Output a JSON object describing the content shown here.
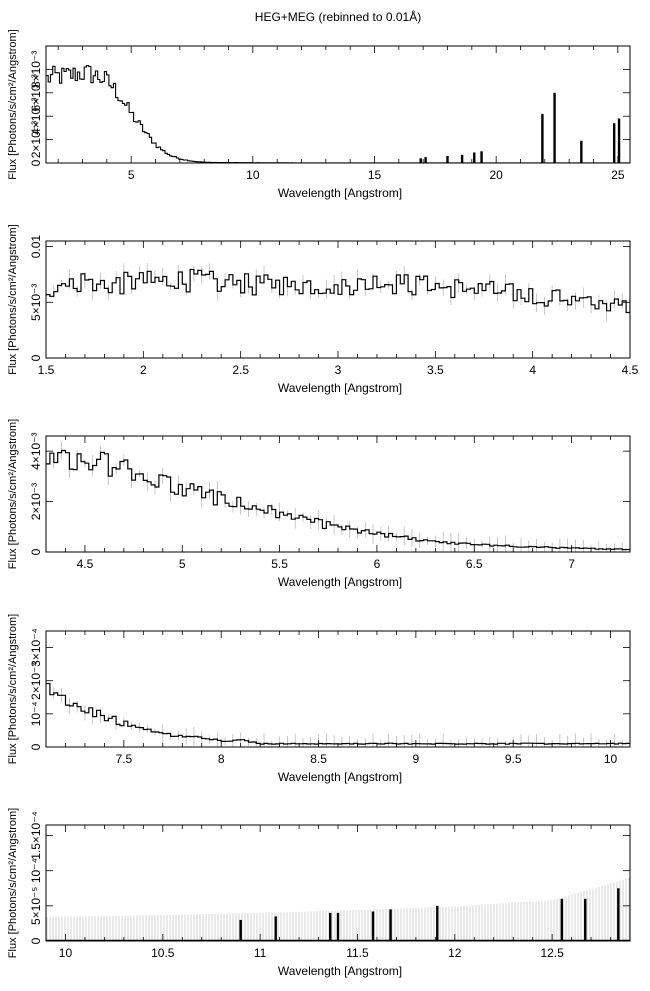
{
  "figure": {
    "title": "HEG+MEG (rebinned to 0.01Å)"
  },
  "chart_data": [
    {
      "type": "line",
      "xlabel": "Wavelength [Angstrom]",
      "ylabel": "Flux [Photons/s/cm²/Angstrom]",
      "xlim": [
        1.5,
        25.5
      ],
      "ylim": [
        0,
        0.01
      ],
      "xticks": [
        5,
        10,
        15,
        20,
        25
      ],
      "yticks": [
        {
          "v": 0,
          "label": "0"
        },
        {
          "v": 0.002,
          "label": "2×10⁻³"
        },
        {
          "v": 0.004,
          "label": "4×10⁻³"
        },
        {
          "v": 0.006,
          "label": "6×10⁻³"
        },
        {
          "v": 0.008,
          "label": "8×10⁻³"
        }
      ],
      "series": [
        {
          "x": [
            1.5,
            1.8,
            2.1,
            2.4,
            2.7,
            3.0,
            3.3,
            3.6,
            3.9,
            4.2,
            4.5,
            4.8,
            5.1,
            5.4,
            5.7,
            6.0,
            6.3,
            6.6,
            6.9,
            7.2,
            7.6,
            8.0,
            9,
            10,
            12,
            15,
            18,
            21,
            25.5
          ],
          "y": [
            0.0072,
            0.0074,
            0.0074,
            0.0075,
            0.0076,
            0.0077,
            0.0076,
            0.0074,
            0.0071,
            0.0065,
            0.0057,
            0.0047,
            0.0038,
            0.003,
            0.0022,
            0.0015,
            0.001,
            0.0006,
            0.0004,
            0.00025,
            0.00012,
            6e-05,
            3e-05,
            2e-05,
            1e-05,
            1e-05,
            1e-05,
            1e-05,
            1e-05
          ]
        }
      ],
      "spikes": [
        {
          "x": 16.9,
          "y": 0.0004
        },
        {
          "x": 17.1,
          "y": 0.0005
        },
        {
          "x": 18.0,
          "y": 0.0006
        },
        {
          "x": 18.6,
          "y": 0.0007
        },
        {
          "x": 19.1,
          "y": 0.0009
        },
        {
          "x": 19.4,
          "y": 0.001
        },
        {
          "x": 21.9,
          "y": 0.0042
        },
        {
          "x": 22.4,
          "y": 0.006
        },
        {
          "x": 23.5,
          "y": 0.0019
        },
        {
          "x": 24.85,
          "y": 0.0034
        },
        {
          "x": 25.05,
          "y": 0.0038
        }
      ]
    },
    {
      "type": "line",
      "xlabel": "Wavelength [Angstrom]",
      "ylabel": "Flux [Photons/s/cm²/Angstrom]",
      "xlim": [
        1.5,
        4.5
      ],
      "ylim": [
        0,
        0.0105
      ],
      "xticks": [
        1.5,
        2,
        2.5,
        3,
        3.5,
        4,
        4.5
      ],
      "yticks": [
        {
          "v": 0,
          "label": "0"
        },
        {
          "v": 0.005,
          "label": "5×10⁻³"
        },
        {
          "v": 0.01,
          "label": "0.01"
        }
      ],
      "series": [
        {
          "x": [
            1.5,
            1.6,
            1.7,
            1.8,
            1.9,
            2.0,
            2.2,
            2.4,
            2.6,
            2.8,
            3.0,
            3.2,
            3.4,
            3.6,
            3.8,
            4.0,
            4.2,
            4.4,
            4.5
          ],
          "y": [
            0.0062,
            0.0068,
            0.007,
            0.0066,
            0.0067,
            0.0068,
            0.007,
            0.0067,
            0.0065,
            0.0066,
            0.0066,
            0.0068,
            0.0065,
            0.0063,
            0.006,
            0.0056,
            0.0052,
            0.0049,
            0.0047
          ]
        }
      ]
    },
    {
      "type": "line",
      "xlabel": "Wavelength [Angstrom]",
      "ylabel": "Flux [Photons/s/cm²/Angstrom]",
      "xlim": [
        4.3,
        7.3
      ],
      "ylim": [
        0,
        0.0046
      ],
      "xticks": [
        4.5,
        5,
        5.5,
        6,
        6.5,
        7
      ],
      "yticks": [
        {
          "v": 0,
          "label": "0"
        },
        {
          "v": 0.002,
          "label": "2×10⁻³"
        },
        {
          "v": 0.004,
          "label": "4×10⁻³"
        }
      ],
      "series": [
        {
          "x": [
            4.3,
            4.4,
            4.5,
            4.6,
            4.8,
            5.0,
            5.2,
            5.4,
            5.6,
            5.8,
            6.0,
            6.2,
            6.4,
            6.6,
            6.8,
            7.0,
            7.3
          ],
          "y": [
            0.0041,
            0.0039,
            0.0037,
            0.0035,
            0.003,
            0.0025,
            0.0021,
            0.0017,
            0.0013,
            0.00095,
            0.0007,
            0.0005,
            0.00035,
            0.00025,
            0.0002,
            0.00015,
            0.0001
          ]
        }
      ]
    },
    {
      "type": "line",
      "xlabel": "Wavelength [Angstrom]",
      "ylabel": "Flux [Photons/s/cm²/Angstrom]",
      "xlim": [
        7.1,
        10.1
      ],
      "ylim": [
        0,
        0.00035
      ],
      "xticks": [
        7.5,
        8,
        8.5,
        9,
        9.5,
        10
      ],
      "yticks": [
        {
          "v": 0,
          "label": "0"
        },
        {
          "v": 0.0001,
          "label": "10⁻⁴"
        },
        {
          "v": 0.0002,
          "label": "2×10⁻⁴"
        },
        {
          "v": 0.0003,
          "label": "3×10⁻⁴"
        }
      ],
      "series": [
        {
          "x": [
            7.1,
            7.2,
            7.3,
            7.4,
            7.5,
            7.6,
            7.7,
            7.8,
            7.9,
            8.0,
            8.1,
            8.2,
            8.3,
            8.4,
            8.5,
            8.6,
            8.8,
            9.0,
            9.5,
            10.1
          ],
          "y": [
            0.00018,
            0.00014,
            0.00011,
            9e-05,
            7e-05,
            5e-05,
            4e-05,
            3e-05,
            3e-05,
            2e-05,
            2e-05,
            1e-05,
            1e-05,
            1e-05,
            1e-05,
            1e-05,
            1e-05,
            1e-05,
            1e-05,
            1e-05
          ]
        }
      ]
    },
    {
      "type": "line",
      "xlabel": "Wavelength [Angstrom]",
      "ylabel": "Flux [Photons/s/cm²/Angstrom]",
      "xlim": [
        9.9,
        12.9
      ],
      "ylim": [
        0,
        0.000165
      ],
      "xticks": [
        10,
        10.5,
        11,
        11.5,
        12,
        12.5
      ],
      "yticks": [
        {
          "v": 0,
          "label": "0"
        },
        {
          "v": 5e-05,
          "label": "5×10⁻⁵"
        },
        {
          "v": 0.0001,
          "label": "10⁻⁴"
        },
        {
          "v": 0.00015,
          "label": "1.5×10⁻⁴"
        }
      ],
      "series": [
        {
          "x": [
            9.9,
            10.5,
            11.0,
            11.5,
            12.0,
            12.5,
            12.9
          ],
          "y": [
            1e-06,
            1e-06,
            1e-06,
            1e-06,
            1e-06,
            1e-06,
            1e-06
          ]
        }
      ],
      "errband": {
        "x": [
          9.9,
          10.5,
          11.0,
          11.5,
          12.0,
          12.5,
          12.9
        ],
        "y": [
          3.4e-05,
          3.7e-05,
          4e-05,
          4.4e-05,
          4.9e-05,
          5.8e-05,
          9e-05
        ]
      },
      "spikes": [
        {
          "x": 10.9,
          "y": 3e-05
        },
        {
          "x": 11.08,
          "y": 3.5e-05
        },
        {
          "x": 11.36,
          "y": 4e-05
        },
        {
          "x": 11.4,
          "y": 4e-05
        },
        {
          "x": 11.58,
          "y": 4.2e-05
        },
        {
          "x": 11.67,
          "y": 4.5e-05
        },
        {
          "x": 11.91,
          "y": 5e-05
        },
        {
          "x": 12.55,
          "y": 6e-05
        },
        {
          "x": 12.67,
          "y": 6e-05
        },
        {
          "x": 12.84,
          "y": 7.5e-05
        }
      ]
    }
  ]
}
